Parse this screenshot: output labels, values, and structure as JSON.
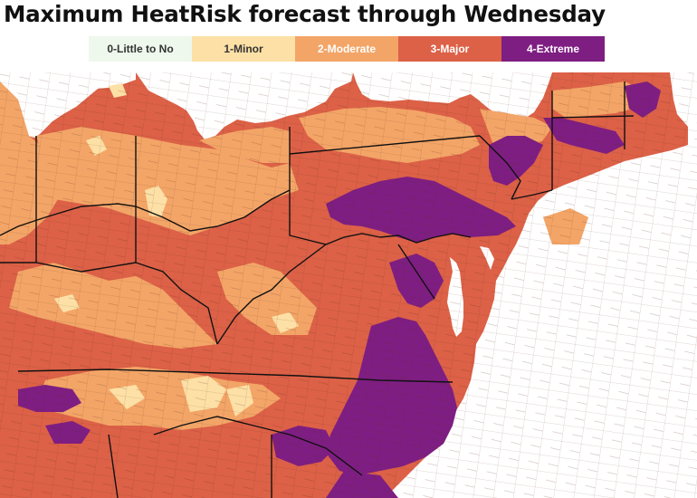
{
  "title": "Maximum HeatRisk forecast through Wednesday",
  "legend": {
    "items": [
      {
        "label": "0-Little to No",
        "color": "#eef8ec",
        "text_color": "#333333"
      },
      {
        "label": "1-Minor",
        "color": "#fde0a6",
        "text_color": "#333333"
      },
      {
        "label": "2-Moderate",
        "color": "#f3a567",
        "text_color": "#ffffff"
      },
      {
        "label": "3-Major",
        "color": "#dc6147",
        "text_color": "#ffffff"
      },
      {
        "label": "4-Extreme",
        "color": "#7e1e82",
        "text_color": "#ffffff"
      }
    ]
  },
  "map": {
    "colors": {
      "water": "#ffffff",
      "little": "#eef8ec",
      "minor": "#fde0a6",
      "moderate": "#f3a567",
      "major": "#dc6147",
      "extreme": "#7e1e82",
      "border": "#111111",
      "county": "#5a2a1a"
    }
  }
}
